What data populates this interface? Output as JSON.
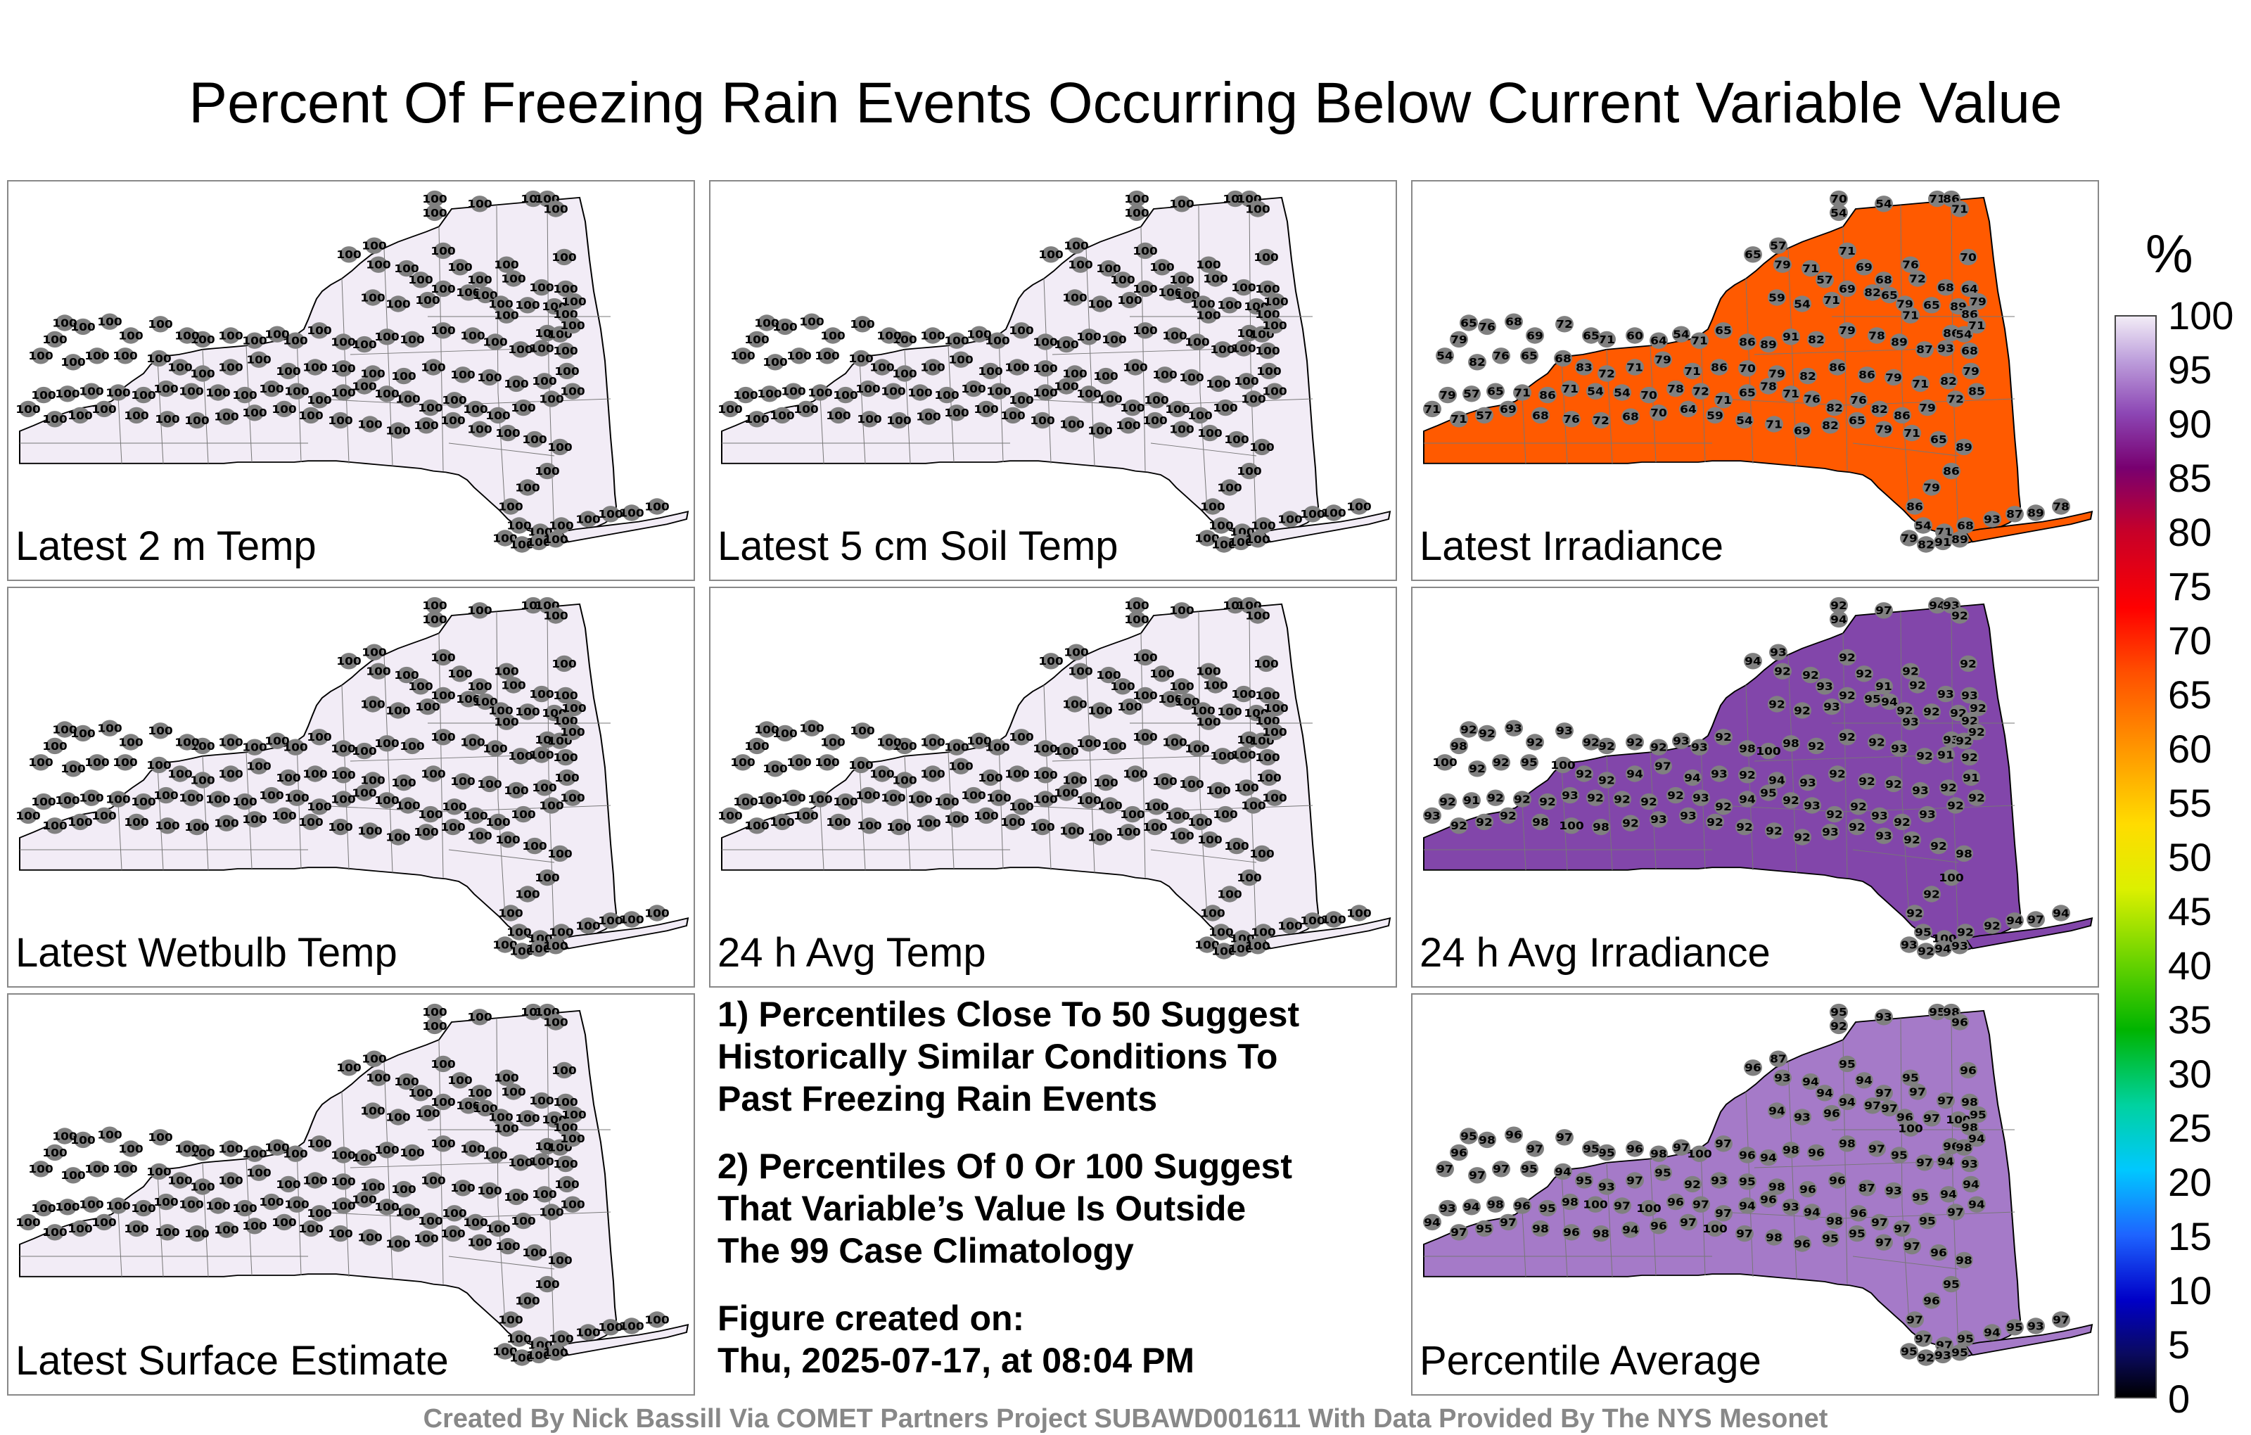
{
  "title": "Percent Of Freezing Rain Events Occurring Below Current Variable Value",
  "panels": [
    {
      "label": "Latest 2 m Temp"
    },
    {
      "label": "Latest 5 cm Soil Temp"
    },
    {
      "label": "Latest Irradiance"
    },
    {
      "label": "Latest Wetbulb Temp"
    },
    {
      "label": "24 h Avg Temp"
    },
    {
      "label": "24 h Avg Irradiance"
    },
    {
      "label": "Latest Surface Estimate"
    },
    {
      "label": "Percentile Average"
    }
  ],
  "notes": {
    "line1": "1) Percentiles Close To 50 Suggest",
    "line2": "Historically Similar Conditions To",
    "line3": "Past Freezing Rain Events",
    "line4": "2) Percentiles Of 0 Or 100 Suggest",
    "line5": "That Variable’s Value Is Outside",
    "line6": "The 99 Case Climatology",
    "line7": "Figure created on:",
    "line8": "Thu, 2025-07-17, at 08:04 PM"
  },
  "colorbar": {
    "unit": "%",
    "ticks": [
      "100",
      "95",
      "90",
      "85",
      "80",
      "75",
      "70",
      "65",
      "60",
      "55",
      "50",
      "45",
      "40",
      "35",
      "30",
      "25",
      "20",
      "15",
      "10",
      "5",
      "0"
    ],
    "range": [
      0,
      100
    ]
  },
  "credit": "Created By Nick Bassill Via COMET Partners Project SUBAWD001611 With Data Provided By The NYS Mesonet",
  "map_fill_colors": {
    "uniform100": "#f2ecf6",
    "irradiance_base": "#ff5a00",
    "avg_irradiance_base": "#8246aa",
    "average_base": "#a57ac8"
  },
  "station_values": {
    "temp2m": [
      "100",
      "100",
      "100",
      "100",
      "100",
      "100",
      "100",
      "100",
      "100",
      "100",
      "100",
      "100",
      "100",
      "100",
      "100",
      "100",
      "100",
      "100",
      "100",
      "100",
      "100",
      "100",
      "100",
      "100",
      "100",
      "100",
      "100",
      "100",
      "100",
      "100",
      "100",
      "100",
      "100",
      "100",
      "100",
      "100",
      "100",
      "100",
      "100",
      "100",
      "100",
      "100",
      "100",
      "100",
      "100",
      "100",
      "100",
      "100",
      "100",
      "100",
      "100",
      "100",
      "100",
      "100",
      "100",
      "100",
      "100",
      "100",
      "100",
      "100"
    ],
    "irradiance": [
      "70",
      "54",
      "54",
      "71",
      "86",
      "71",
      "65",
      "57",
      "79",
      "71",
      "71",
      "57",
      "69",
      "68",
      "76",
      "72",
      "68",
      "70",
      "64",
      "59",
      "54",
      "71",
      "69",
      "82",
      "65",
      "79",
      "71",
      "65",
      "89",
      "86",
      "79",
      "86",
      "54",
      "71",
      "68",
      "93",
      "87",
      "89",
      "78",
      "79",
      "82",
      "91",
      "89",
      "86",
      "65",
      "71",
      "54",
      "64",
      "60",
      "71",
      "65",
      "72",
      "69",
      "68",
      "76",
      "65",
      "79",
      "54",
      "82",
      "76",
      "65",
      "68",
      "83",
      "72",
      "71",
      "79",
      "71",
      "86",
      "70",
      "79",
      "82",
      "86",
      "86",
      "79",
      "71",
      "82",
      "79",
      "85",
      "72",
      "79",
      "86",
      "82",
      "76",
      "82",
      "76",
      "71",
      "78",
      "65",
      "71",
      "72",
      "78"
    ],
    "avg_irradiance": [
      "92",
      "94",
      "97",
      "94",
      "93",
      "92",
      "94",
      "93",
      "92",
      "92",
      "92",
      "93",
      "92",
      "91",
      "92",
      "92",
      "93",
      "92",
      "93",
      "92",
      "92",
      "93",
      "92",
      "95",
      "94",
      "92",
      "93",
      "92",
      "92",
      "92",
      "92",
      "93",
      "92",
      "92",
      "92",
      "91",
      "92",
      "93",
      "92",
      "92",
      "92",
      "98",
      "100",
      "98",
      "92",
      "93",
      "93",
      "92",
      "92",
      "92",
      "92",
      "93",
      "92",
      "93",
      "92",
      "92",
      "98",
      "100",
      "92",
      "92",
      "95",
      "100",
      "92"
    ],
    "average": [
      "95",
      "92",
      "93",
      "95",
      "98",
      "96",
      "96",
      "87",
      "93",
      "95",
      "94",
      "94",
      "94",
      "97",
      "95",
      "97",
      "97",
      "96",
      "98",
      "94",
      "93",
      "96",
      "94",
      "97",
      "97",
      "96",
      "100",
      "97",
      "100",
      "98",
      "95",
      "96",
      "98",
      "94",
      "93",
      "94",
      "97",
      "95",
      "97",
      "98",
      "96",
      "98",
      "94",
      "96",
      "97",
      "100",
      "97",
      "98",
      "96",
      "95",
      "95",
      "97",
      "97",
      "96",
      "98",
      "95",
      "96",
      "97",
      "97",
      "97",
      "95",
      "94",
      "95",
      "93",
      "97"
    ]
  }
}
